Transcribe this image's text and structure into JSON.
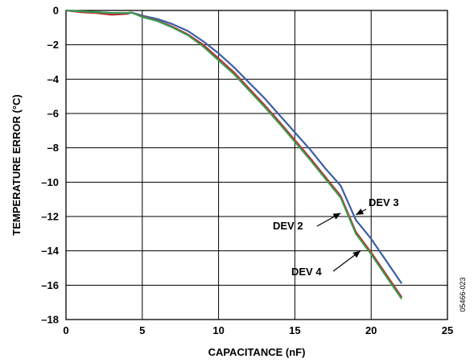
{
  "figure_code": "05466-023",
  "chart_data": {
    "type": "line",
    "xlabel": "CAPACITANCE (nF)",
    "ylabel": "TEMPERATURE ERROR (°C)",
    "xlim": [
      0,
      25
    ],
    "ylim": [
      -18,
      0
    ],
    "xticks": [
      0,
      5,
      10,
      15,
      20,
      25
    ],
    "yticks": [
      0,
      -2,
      -4,
      -6,
      -8,
      -10,
      -12,
      -14,
      -16,
      -18
    ],
    "grid": true,
    "series": [
      {
        "name": "DEV 3",
        "color": "#3a5fa8",
        "x": [
          0,
          1,
          2,
          3,
          4,
          4.3,
          5,
          6,
          7,
          8,
          9,
          10,
          11,
          12,
          13,
          14,
          15,
          16,
          17,
          18,
          19,
          20,
          21,
          22
        ],
        "y": [
          0,
          -0.05,
          -0.1,
          -0.15,
          -0.15,
          -0.12,
          -0.3,
          -0.5,
          -0.8,
          -1.2,
          -1.8,
          -2.5,
          -3.3,
          -4.2,
          -5.1,
          -6.1,
          -7.1,
          -8.1,
          -9.2,
          -10.2,
          -12.2,
          -13.3,
          -14.6,
          -15.9
        ]
      },
      {
        "name": "DEV 2",
        "color": "#c0262d",
        "x": [
          0,
          1,
          2,
          3,
          4,
          4.3,
          5,
          6,
          7,
          8,
          9,
          10,
          11,
          12,
          13,
          14,
          15,
          16,
          17,
          18,
          19,
          20,
          21,
          22
        ],
        "y": [
          0,
          -0.1,
          -0.15,
          -0.25,
          -0.2,
          -0.12,
          -0.35,
          -0.6,
          -0.95,
          -1.4,
          -2.0,
          -2.8,
          -3.6,
          -4.55,
          -5.5,
          -6.5,
          -7.55,
          -8.6,
          -9.7,
          -10.8,
          -12.9,
          -14.1,
          -15.4,
          -16.7
        ]
      },
      {
        "name": "DEV 4",
        "color": "#3c9a4e",
        "x": [
          0,
          1,
          2,
          3,
          4,
          4.3,
          5,
          6,
          7,
          8,
          9,
          10,
          11,
          12,
          13,
          14,
          15,
          16,
          17,
          18,
          19,
          20,
          21,
          22
        ],
        "y": [
          0,
          -0.05,
          -0.1,
          -0.15,
          -0.15,
          -0.12,
          -0.38,
          -0.62,
          -1.0,
          -1.45,
          -2.1,
          -2.9,
          -3.7,
          -4.65,
          -5.6,
          -6.6,
          -7.65,
          -8.7,
          -9.8,
          -10.9,
          -13.0,
          -14.2,
          -15.5,
          -16.8
        ]
      }
    ],
    "annotations": [
      {
        "text": "DEV 3",
        "points_to": [
          19,
          -11.9
        ]
      },
      {
        "text": "DEV 2",
        "points_to": [
          18,
          -11.8
        ]
      },
      {
        "text": "DEV 4",
        "points_to": [
          19.3,
          -14.0
        ]
      }
    ]
  }
}
